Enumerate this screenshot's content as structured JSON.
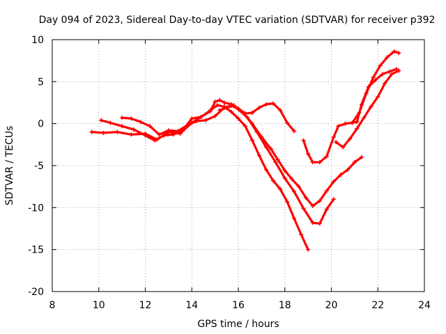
{
  "chart_data": {
    "type": "line",
    "title": "Day 094 of 2023, Sidereal Day-to-day VTEC variation (SDTVAR) for receiver p392",
    "xlabel": "GPS time / hours",
    "ylabel": "SDTVAR / TECUs",
    "xlim": [
      8,
      24
    ],
    "ylim": [
      -20,
      10
    ],
    "xticks": [
      "8",
      "10",
      "12",
      "14",
      "16",
      "18",
      "20",
      "22",
      "24"
    ],
    "yticks": [
      "-20",
      "-15",
      "-10",
      "-5",
      "0",
      "5",
      "10"
    ],
    "grid": true,
    "legend": "none",
    "color": "#ff0000",
    "series": [
      {
        "x": [
          9.7,
          10.2,
          10.8,
          11.4,
          12.0,
          12.5,
          13.0,
          13.5,
          14.0,
          14.4,
          14.8,
          15.1,
          15.4,
          15.7,
          16.0,
          16.3,
          16.6,
          16.9,
          17.2,
          17.5,
          17.8,
          18.1,
          18.4,
          18.7,
          19.0
        ],
        "y": [
          -1.0,
          -1.1,
          -1.0,
          -1.3,
          -1.2,
          -1.9,
          -1.0,
          -1.2,
          0.6,
          0.8,
          1.6,
          2.2,
          2.0,
          1.4,
          0.6,
          -0.3,
          -2.0,
          -3.8,
          -5.5,
          -6.8,
          -7.8,
          -9.3,
          -11.3,
          -13.2,
          -15.0
        ]
      },
      {
        "x": [
          10.1,
          10.5,
          11.0,
          11.5,
          12.0,
          12.4,
          12.8,
          13.2,
          13.6,
          14.0,
          14.4,
          14.8,
          15.0,
          15.2,
          15.4,
          15.7,
          16.0,
          16.4,
          16.8,
          17.2,
          17.6,
          18.0,
          18.4,
          18.8,
          19.2,
          19.5,
          19.8,
          20.1
        ],
        "y": [
          0.4,
          0.1,
          -0.3,
          -0.7,
          -1.4,
          -2.0,
          -1.4,
          -1.3,
          -0.9,
          0.1,
          0.8,
          1.5,
          2.6,
          2.8,
          2.5,
          2.3,
          1.7,
          0.7,
          -1.0,
          -2.8,
          -4.6,
          -6.5,
          -8.1,
          -10.1,
          -11.8,
          -11.9,
          -10.2,
          -9.0
        ]
      },
      {
        "x": [
          11.0,
          11.4,
          11.8,
          12.2,
          12.6,
          13.0,
          13.4,
          13.8,
          14.2,
          14.6,
          15.0,
          15.4,
          15.8,
          16.2,
          16.6,
          17.0,
          17.4,
          17.7,
          18.0,
          18.3,
          18.6,
          18.9,
          19.2,
          19.5,
          19.8,
          20.1,
          20.4,
          20.7,
          21.0,
          21.3
        ],
        "y": [
          0.7,
          0.6,
          0.2,
          -0.3,
          -1.3,
          -0.8,
          -0.9,
          -0.2,
          0.3,
          0.4,
          0.9,
          1.9,
          2.2,
          1.3,
          0.0,
          -1.6,
          -3.0,
          -4.3,
          -5.6,
          -6.6,
          -7.5,
          -8.8,
          -9.8,
          -9.2,
          -8.0,
          -6.9,
          -6.1,
          -5.5,
          -4.6,
          -4.0
        ]
      },
      {
        "x": [
          15.2,
          15.5,
          15.8,
          16.0,
          16.3,
          16.6,
          16.9,
          17.2,
          17.5,
          17.8,
          18.1,
          18.4
        ],
        "y": [
          1.6,
          1.9,
          2.1,
          1.8,
          1.2,
          1.3,
          1.9,
          2.3,
          2.4,
          1.6,
          0.1,
          -0.9
        ]
      },
      {
        "x": [
          18.8,
          19.0,
          19.2,
          19.5,
          19.8,
          20.1,
          20.3,
          20.6,
          20.9,
          21.2,
          21.5,
          21.8,
          22.1,
          22.4,
          22.7,
          22.9
        ],
        "y": [
          -2.0,
          -3.6,
          -4.6,
          -4.6,
          -3.9,
          -1.6,
          -0.3,
          0.0,
          0.1,
          1.3,
          3.6,
          5.5,
          6.9,
          7.9,
          8.6,
          8.4
        ]
      },
      {
        "x": [
          20.2,
          20.5,
          20.8,
          21.1,
          21.4,
          21.7,
          22.0,
          22.3,
          22.6,
          22.9
        ],
        "y": [
          -2.2,
          -2.8,
          -1.8,
          -0.6,
          0.7,
          2.0,
          3.2,
          4.8,
          5.9,
          6.3
        ]
      },
      {
        "x": [
          20.9,
          21.1,
          21.3,
          21.6,
          21.9,
          22.2,
          22.5,
          22.8
        ],
        "y": [
          0.1,
          0.2,
          2.3,
          4.4,
          5.2,
          5.9,
          6.2,
          6.5
        ]
      }
    ]
  }
}
